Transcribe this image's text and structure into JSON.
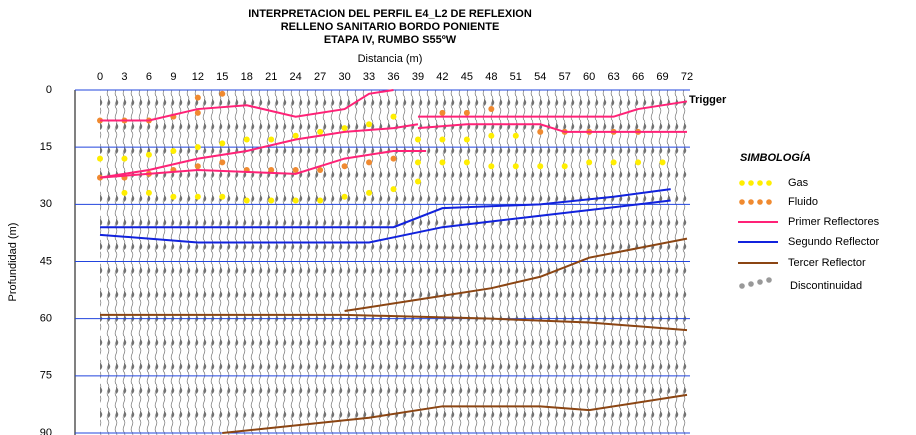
{
  "chart_data": {
    "type": "seismic",
    "title": [
      "INTERPRETACION DEL PERFIL E4_L2 DE REFLEXION",
      "RELLENO SANITARIO BORDO  PONIENTE",
      "ETAPA IV, RUMBO S55ºW"
    ],
    "x_label": "Distancia (m)",
    "y_label": "Profundidad (m)",
    "annotation": "Trigger",
    "legend_title": "SIMBOLOGÍA",
    "xlim": [
      0,
      72
    ],
    "ylim": [
      0,
      90
    ],
    "y_inverted": true,
    "xticks": [
      0,
      3,
      6,
      9,
      12,
      15,
      18,
      21,
      24,
      27,
      30,
      33,
      36,
      39,
      42,
      45,
      48,
      51,
      54,
      57,
      60,
      63,
      66,
      69,
      72
    ],
    "yticks": [
      0,
      15,
      30,
      45,
      60,
      75,
      90
    ],
    "grid": true,
    "grid_color": "#2244dd",
    "series": [
      {
        "name": "Gas",
        "kind": "points",
        "color": "#ffee00",
        "x": [
          0,
          3,
          6,
          9,
          12,
          15,
          18,
          21,
          24,
          27,
          30,
          33,
          36,
          3,
          6,
          9,
          12,
          15,
          18,
          21,
          24,
          27,
          30,
          33,
          36,
          39,
          39,
          42,
          45,
          48,
          51,
          54,
          57,
          60,
          63,
          66,
          69,
          39,
          42,
          45,
          48,
          51
        ],
        "values": [
          18,
          18,
          17,
          16,
          15,
          14,
          13,
          13,
          12,
          11,
          10,
          9,
          7,
          27,
          27,
          28,
          28,
          28,
          29,
          29,
          29,
          29,
          28,
          27,
          26,
          24,
          19,
          19,
          19,
          20,
          20,
          20,
          20,
          19,
          19,
          19,
          19,
          13,
          13,
          13,
          12,
          12
        ]
      },
      {
        "name": "Fluido",
        "kind": "points",
        "color": "#f08a30",
        "x": [
          0,
          3,
          6,
          9,
          12,
          0,
          3,
          6,
          9,
          12,
          15,
          18,
          21,
          24,
          27,
          30,
          33,
          36,
          42,
          45,
          48,
          54,
          57,
          60,
          63,
          66,
          12,
          15
        ],
        "values": [
          8,
          8,
          8,
          7,
          6,
          23,
          23,
          22,
          21,
          20,
          19,
          21,
          21,
          21,
          21,
          20,
          19,
          18,
          6,
          6,
          5,
          11,
          11,
          11,
          11,
          11,
          2,
          1
        ]
      },
      {
        "name": "Primer Reflectores",
        "kind": "line",
        "color": "#ff2277",
        "x": [
          0,
          6,
          12,
          18,
          24,
          30,
          33,
          36,
          null,
          0,
          6,
          12,
          18,
          24,
          30,
          36,
          39,
          null,
          0,
          12,
          24,
          30,
          36,
          40,
          null,
          39,
          57,
          63,
          66,
          72,
          null,
          39,
          45,
          54,
          57,
          66,
          72
        ],
        "values": [
          8,
          8,
          5,
          4,
          7,
          5,
          1,
          0,
          null,
          23,
          21,
          18,
          16,
          13,
          11,
          10,
          9,
          null,
          23,
          21,
          22,
          18,
          16,
          16,
          null,
          7,
          7,
          7,
          5,
          3,
          null,
          10,
          9,
          9,
          11,
          11,
          11
        ]
      },
      {
        "name": "Segundo Reflector",
        "kind": "line",
        "color": "#1122dd",
        "x": [
          0,
          36,
          42,
          54,
          63,
          70,
          null,
          0,
          6,
          12,
          33,
          42,
          54,
          66,
          70
        ],
        "values": [
          36,
          36,
          31,
          30,
          28,
          26,
          null,
          38,
          39,
          40,
          40,
          36,
          33,
          30,
          29
        ]
      },
      {
        "name": "Tercer Reflector",
        "kind": "line",
        "color": "#8b4513",
        "x": [
          0,
          30,
          48,
          60,
          72,
          null,
          30,
          39,
          48,
          54,
          60,
          72,
          null,
          15,
          33,
          42,
          54,
          60,
          72
        ],
        "values": [
          59,
          59,
          60,
          61,
          63,
          null,
          58,
          55,
          52,
          49,
          44,
          39,
          null,
          90,
          86,
          83,
          83,
          84,
          80
        ]
      },
      {
        "name": "Discontinuidad",
        "kind": "points",
        "color": "#999999",
        "x": [],
        "values": []
      }
    ]
  }
}
